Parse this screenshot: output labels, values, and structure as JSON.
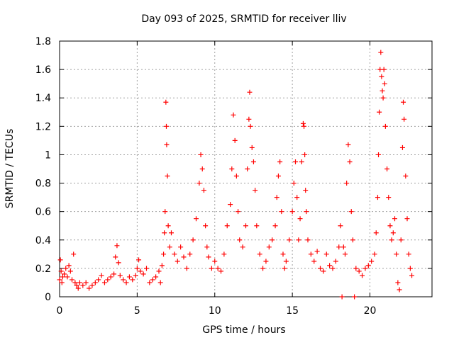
{
  "chart_data": {
    "type": "scatter",
    "title": "Day 093 of 2025, SRMTID for receiver lliv",
    "xlabel": "GPS time / hours",
    "ylabel": "SRMTID / TECUs",
    "xlim": [
      0,
      24
    ],
    "ylim": [
      0,
      1.8
    ],
    "xticks": [
      0,
      5,
      10,
      15,
      20
    ],
    "xtick_labels": [
      "0",
      "5",
      "10",
      "15",
      "20"
    ],
    "yticks": [
      0,
      0.2,
      0.4,
      0.6,
      0.8,
      1.0,
      1.2,
      1.4,
      1.6,
      1.8
    ],
    "ytick_labels": [
      "0",
      "0.2",
      "0.4",
      "0.6",
      "0.8",
      "1",
      "1.2",
      "1.4",
      "1.6",
      "1.8"
    ],
    "grid": true,
    "marker": "+",
    "color": "#ff0000",
    "series": [
      {
        "name": "SRMTID",
        "points": [
          [
            0.0,
            0.12
          ],
          [
            0.05,
            0.26
          ],
          [
            0.1,
            0.18
          ],
          [
            0.15,
            0.1
          ],
          [
            0.2,
            0.14
          ],
          [
            0.3,
            0.16
          ],
          [
            0.4,
            0.2
          ],
          [
            0.5,
            0.14
          ],
          [
            0.6,
            0.22
          ],
          [
            0.7,
            0.18
          ],
          [
            0.8,
            0.12
          ],
          [
            0.9,
            0.3
          ],
          [
            1.0,
            0.1
          ],
          [
            1.1,
            0.08
          ],
          [
            1.2,
            0.06
          ],
          [
            1.3,
            0.1
          ],
          [
            1.5,
            0.08
          ],
          [
            1.7,
            0.1
          ],
          [
            1.9,
            0.06
          ],
          [
            2.1,
            0.08
          ],
          [
            2.3,
            0.1
          ],
          [
            2.5,
            0.12
          ],
          [
            2.7,
            0.15
          ],
          [
            2.9,
            0.1
          ],
          [
            3.1,
            0.12
          ],
          [
            3.3,
            0.14
          ],
          [
            3.5,
            0.16
          ],
          [
            3.6,
            0.28
          ],
          [
            3.7,
            0.36
          ],
          [
            3.8,
            0.24
          ],
          [
            3.9,
            0.15
          ],
          [
            4.1,
            0.12
          ],
          [
            4.3,
            0.1
          ],
          [
            4.5,
            0.14
          ],
          [
            4.7,
            0.12
          ],
          [
            4.9,
            0.15
          ],
          [
            5.0,
            0.2
          ],
          [
            5.1,
            0.26
          ],
          [
            5.2,
            0.18
          ],
          [
            5.4,
            0.16
          ],
          [
            5.6,
            0.2
          ],
          [
            5.8,
            0.1
          ],
          [
            6.0,
            0.12
          ],
          [
            6.2,
            0.14
          ],
          [
            6.4,
            0.18
          ],
          [
            6.5,
            0.1
          ],
          [
            6.6,
            0.22
          ],
          [
            6.7,
            0.3
          ],
          [
            6.75,
            0.45
          ],
          [
            6.8,
            0.6
          ],
          [
            6.85,
            1.37
          ],
          [
            6.88,
            1.2
          ],
          [
            6.9,
            1.07
          ],
          [
            6.95,
            0.85
          ],
          [
            7.0,
            0.5
          ],
          [
            7.1,
            0.35
          ],
          [
            7.2,
            0.45
          ],
          [
            7.4,
            0.3
          ],
          [
            7.6,
            0.25
          ],
          [
            7.8,
            0.35
          ],
          [
            8.0,
            0.28
          ],
          [
            8.2,
            0.2
          ],
          [
            8.4,
            0.3
          ],
          [
            8.6,
            0.4
          ],
          [
            8.8,
            0.55
          ],
          [
            9.0,
            0.8
          ],
          [
            9.1,
            1.0
          ],
          [
            9.2,
            0.9
          ],
          [
            9.3,
            0.75
          ],
          [
            9.4,
            0.5
          ],
          [
            9.5,
            0.35
          ],
          [
            9.6,
            0.28
          ],
          [
            9.8,
            0.2
          ],
          [
            10.0,
            0.25
          ],
          [
            10.2,
            0.2
          ],
          [
            10.4,
            0.18
          ],
          [
            10.6,
            0.3
          ],
          [
            10.8,
            0.5
          ],
          [
            11.0,
            0.65
          ],
          [
            11.1,
            0.9
          ],
          [
            11.2,
            1.28
          ],
          [
            11.3,
            1.1
          ],
          [
            11.4,
            0.85
          ],
          [
            11.5,
            0.6
          ],
          [
            11.6,
            0.4
          ],
          [
            11.8,
            0.35
          ],
          [
            12.0,
            0.5
          ],
          [
            12.1,
            0.9
          ],
          [
            12.2,
            1.25
          ],
          [
            12.25,
            1.44
          ],
          [
            12.3,
            1.2
          ],
          [
            12.4,
            1.05
          ],
          [
            12.5,
            0.95
          ],
          [
            12.6,
            0.75
          ],
          [
            12.7,
            0.5
          ],
          [
            12.9,
            0.3
          ],
          [
            13.1,
            0.2
          ],
          [
            13.3,
            0.25
          ],
          [
            13.5,
            0.35
          ],
          [
            13.7,
            0.4
          ],
          [
            13.9,
            0.5
          ],
          [
            14.0,
            0.7
          ],
          [
            14.1,
            0.85
          ],
          [
            14.2,
            0.95
          ],
          [
            14.3,
            0.6
          ],
          [
            14.4,
            0.3
          ],
          [
            14.5,
            0.2
          ],
          [
            14.6,
            0.25
          ],
          [
            14.8,
            0.4
          ],
          [
            15.0,
            0.6
          ],
          [
            15.1,
            0.8
          ],
          [
            15.2,
            0.95
          ],
          [
            15.3,
            0.7
          ],
          [
            15.4,
            0.4
          ],
          [
            15.5,
            0.55
          ],
          [
            15.6,
            0.95
          ],
          [
            15.7,
            1.22
          ],
          [
            15.75,
            1.2
          ],
          [
            15.8,
            1.0
          ],
          [
            15.85,
            0.75
          ],
          [
            15.9,
            0.6
          ],
          [
            16.0,
            0.4
          ],
          [
            16.2,
            0.3
          ],
          [
            16.4,
            0.25
          ],
          [
            16.6,
            0.32
          ],
          [
            16.8,
            0.2
          ],
          [
            17.0,
            0.18
          ],
          [
            17.2,
            0.3
          ],
          [
            17.4,
            0.22
          ],
          [
            17.6,
            0.2
          ],
          [
            17.8,
            0.25
          ],
          [
            18.0,
            0.35
          ],
          [
            18.1,
            0.5
          ],
          [
            18.2,
            0.0
          ],
          [
            18.3,
            0.35
          ],
          [
            18.4,
            0.3
          ],
          [
            18.5,
            0.8
          ],
          [
            18.6,
            1.07
          ],
          [
            18.7,
            0.95
          ],
          [
            18.8,
            0.6
          ],
          [
            18.9,
            0.4
          ],
          [
            19.0,
            0.0
          ],
          [
            19.1,
            0.2
          ],
          [
            19.3,
            0.18
          ],
          [
            19.5,
            0.15
          ],
          [
            19.7,
            0.2
          ],
          [
            19.9,
            0.22
          ],
          [
            20.1,
            0.25
          ],
          [
            20.3,
            0.3
          ],
          [
            20.4,
            0.45
          ],
          [
            20.5,
            0.7
          ],
          [
            20.55,
            1.0
          ],
          [
            20.6,
            1.3
          ],
          [
            20.65,
            1.6
          ],
          [
            20.7,
            1.72
          ],
          [
            20.75,
            1.55
          ],
          [
            20.8,
            1.45
          ],
          [
            20.85,
            1.4
          ],
          [
            20.9,
            1.6
          ],
          [
            20.95,
            1.5
          ],
          [
            21.0,
            1.2
          ],
          [
            21.1,
            0.9
          ],
          [
            21.2,
            0.7
          ],
          [
            21.3,
            0.5
          ],
          [
            21.4,
            0.4
          ],
          [
            21.5,
            0.45
          ],
          [
            21.6,
            0.55
          ],
          [
            21.7,
            0.3
          ],
          [
            21.8,
            0.1
          ],
          [
            21.9,
            0.05
          ],
          [
            22.0,
            0.4
          ],
          [
            22.1,
            1.05
          ],
          [
            22.15,
            1.37
          ],
          [
            22.2,
            1.25
          ],
          [
            22.3,
            0.85
          ],
          [
            22.4,
            0.55
          ],
          [
            22.5,
            0.3
          ],
          [
            22.6,
            0.2
          ],
          [
            22.7,
            0.15
          ]
        ]
      }
    ]
  }
}
